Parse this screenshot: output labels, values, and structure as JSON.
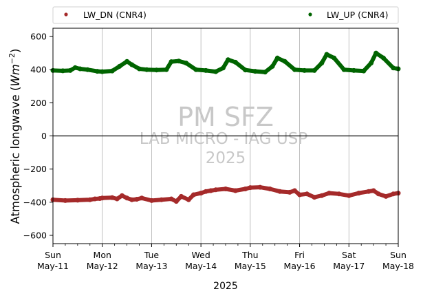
{
  "chart_data": {
    "type": "scatter",
    "xlabel": "2025",
    "ylabel": "Atmospheric longwave (",
    "ylabel_unit": "Wm",
    "ylabel_exp": "−2",
    "ylabel_close": ")",
    "ylim": [
      -650,
      650
    ],
    "yticks": [
      -600,
      -400,
      -200,
      0,
      200,
      400,
      600
    ],
    "ytick_labels": [
      "−600",
      "−400",
      "−200",
      "0",
      "200",
      "400",
      "600"
    ],
    "xlim_days": [
      0,
      7
    ],
    "xticks": [
      {
        "day": 0,
        "line1": "Sun",
        "line2": "May-11"
      },
      {
        "day": 1,
        "line1": "Mon",
        "line2": "May-12"
      },
      {
        "day": 2,
        "line1": "Tue",
        "line2": "May-13"
      },
      {
        "day": 3,
        "line1": "Wed",
        "line2": "May-14"
      },
      {
        "day": 4,
        "line1": "Thu",
        "line2": "May-15"
      },
      {
        "day": 5,
        "line1": "Fri",
        "line2": "May-16"
      },
      {
        "day": 6,
        "line1": "Sat",
        "line2": "May-17"
      },
      {
        "day": 7,
        "line1": "Sun",
        "line2": "May-18"
      }
    ],
    "grid": "vertical",
    "legend_placement": "top",
    "watermark": {
      "line1": "PM SFZ",
      "line2": "LAB MICRO - IAG USP",
      "line3": "2025"
    },
    "series": [
      {
        "name": "LW_DN (CNR4)",
        "color": "#a52a2a",
        "x": [
          0,
          0.25,
          0.5,
          0.75,
          0.85,
          0.95,
          1.0,
          1.2,
          1.3,
          1.4,
          1.5,
          1.6,
          1.7,
          1.8,
          2.0,
          2.2,
          2.4,
          2.5,
          2.6,
          2.75,
          2.85,
          3.0,
          3.1,
          3.2,
          3.3,
          3.5,
          3.7,
          3.9,
          4.0,
          4.2,
          4.4,
          4.6,
          4.8,
          4.9,
          5.0,
          5.15,
          5.3,
          5.45,
          5.6,
          5.8,
          6.0,
          6.2,
          6.4,
          6.5,
          6.6,
          6.75,
          6.9,
          7.0
        ],
        "y": [
          -385,
          -390,
          -388,
          -385,
          -380,
          -378,
          -375,
          -372,
          -380,
          -360,
          -375,
          -385,
          -382,
          -375,
          -390,
          -385,
          -380,
          -395,
          -365,
          -385,
          -355,
          -345,
          -335,
          -330,
          -325,
          -320,
          -330,
          -320,
          -312,
          -310,
          -320,
          -335,
          -340,
          -330,
          -355,
          -350,
          -370,
          -360,
          -345,
          -350,
          -360,
          -345,
          -335,
          -330,
          -350,
          -365,
          -350,
          -345
        ]
      },
      {
        "name": "LW_UP (CNR4)",
        "color": "#006400",
        "x": [
          0,
          0.2,
          0.35,
          0.45,
          0.55,
          0.7,
          0.9,
          1.0,
          1.2,
          1.35,
          1.5,
          1.6,
          1.75,
          1.9,
          2.1,
          2.3,
          2.4,
          2.55,
          2.7,
          2.9,
          3.1,
          3.3,
          3.45,
          3.55,
          3.7,
          3.9,
          4.1,
          4.3,
          4.45,
          4.55,
          4.7,
          4.9,
          5.1,
          5.3,
          5.45,
          5.55,
          5.7,
          5.9,
          6.1,
          6.3,
          6.45,
          6.55,
          6.7,
          6.9,
          7.0
        ],
        "y": [
          395,
          393,
          395,
          412,
          405,
          400,
          390,
          388,
          392,
          420,
          450,
          430,
          405,
          400,
          398,
          400,
          448,
          452,
          440,
          400,
          395,
          388,
          410,
          460,
          445,
          398,
          390,
          385,
          420,
          470,
          450,
          400,
          395,
          395,
          440,
          492,
          470,
          400,
          395,
          392,
          440,
          500,
          470,
          410,
          405
        ]
      }
    ]
  }
}
